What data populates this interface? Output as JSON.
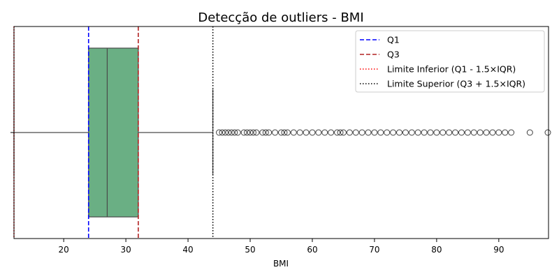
{
  "chart_data": {
    "type": "box",
    "title": "Detecção de outliers - BMI",
    "xlabel": "BMI",
    "ylabel": "",
    "xlim": [
      12,
      98
    ],
    "x_ticks": [
      20,
      30,
      40,
      50,
      60,
      70,
      80,
      90
    ],
    "box": {
      "whisker_low": 12,
      "q1": 24,
      "median": 27,
      "q3": 32,
      "whisker_high": 44,
      "fill_color": "#6aaf84",
      "edge_color": "#4a4a4a"
    },
    "outliers": [
      45,
      45.5,
      46,
      46.5,
      47,
      47.5,
      48,
      49,
      49.5,
      50,
      50.5,
      51,
      52,
      52.5,
      53,
      54,
      55,
      55.5,
      56,
      57,
      58,
      59,
      60,
      61,
      62,
      63,
      64,
      64.5,
      65,
      66,
      67,
      68,
      69,
      70,
      71,
      72,
      73,
      74,
      75,
      76,
      77,
      78,
      79,
      80,
      81,
      82,
      83,
      84,
      85,
      86,
      87,
      88,
      89,
      90,
      91,
      92,
      95,
      98
    ],
    "reference_lines": [
      {
        "name": "Q1",
        "value": 24,
        "color": "#0000ff",
        "style": "dashed"
      },
      {
        "name": "Q3",
        "value": 32,
        "color": "#b22222",
        "style": "dashed"
      },
      {
        "name": "Limite Inferior (Q1 - 1.5×IQR)",
        "value": 12,
        "color": "#ff0000",
        "style": "dotted"
      },
      {
        "name": "Limite Superior (Q3 + 1.5×IQR)",
        "value": 44,
        "color": "#000000",
        "style": "dotted"
      }
    ],
    "legend_position": "top-right",
    "grid": false
  }
}
